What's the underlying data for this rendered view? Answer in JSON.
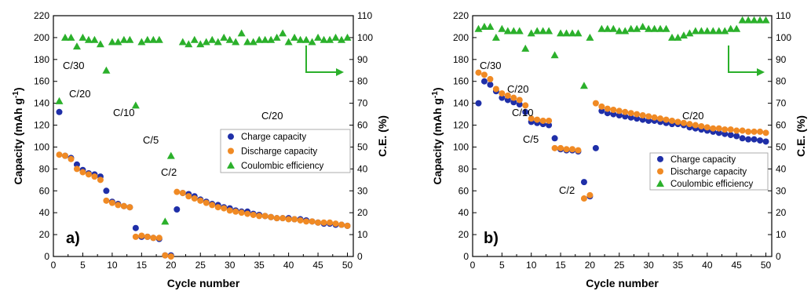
{
  "chart_data": [
    {
      "type": "scatter",
      "panel_label": "a)",
      "xlabel": "Cycle number",
      "ylabel_left": "Capacity (mAh g",
      "ylabel_left_sup": "-1",
      "ylabel_left_end": ")",
      "ylabel_right": "C.E. (%)",
      "xlim": [
        0,
        51
      ],
      "x_ticks": [
        "0",
        "5",
        "10",
        "15",
        "20",
        "25",
        "30",
        "35",
        "40",
        "45",
        "50"
      ],
      "ylim_left": [
        0,
        220
      ],
      "y_ticks_left": [
        "0",
        "20",
        "40",
        "60",
        "80",
        "100",
        "120",
        "140",
        "160",
        "180",
        "200",
        "220"
      ],
      "ylim_right": [
        0,
        110
      ],
      "y_ticks_right": [
        "0",
        "10",
        "20",
        "30",
        "40",
        "50",
        "60",
        "70",
        "80",
        "90",
        "100",
        "110"
      ],
      "grid": false,
      "legend_position": "right-middle",
      "series": [
        {
          "name": "Charge capacity",
          "axis": "left",
          "color": "#1f2fa8",
          "marker": "circle",
          "x": [
            1,
            2,
            3,
            4,
            5,
            6,
            7,
            8,
            9,
            10,
            11,
            12,
            13,
            14,
            15,
            16,
            17,
            18,
            19,
            20,
            21,
            22,
            23,
            24,
            25,
            26,
            27,
            28,
            29,
            30,
            31,
            32,
            33,
            34,
            35,
            36,
            37,
            38,
            39,
            40,
            41,
            42,
            43,
            44,
            45,
            46,
            47,
            48,
            49,
            50
          ],
          "y": [
            132,
            92,
            90,
            84,
            79,
            76,
            75,
            73,
            60,
            50,
            48,
            46,
            45,
            26,
            18,
            18,
            17,
            16,
            1,
            1,
            43,
            58,
            57,
            55,
            52,
            50,
            48,
            47,
            45,
            44,
            42,
            41,
            41,
            39,
            38,
            37,
            36,
            35,
            35,
            35,
            34,
            34,
            33,
            32,
            31,
            30,
            30,
            29,
            29,
            28
          ]
        },
        {
          "name": "Discharge capacity",
          "axis": "left",
          "color": "#f08a24",
          "marker": "circle",
          "x": [
            1,
            2,
            3,
            4,
            5,
            6,
            7,
            8,
            9,
            10,
            11,
            12,
            13,
            14,
            15,
            16,
            17,
            18,
            19,
            20,
            21,
            22,
            23,
            24,
            25,
            26,
            27,
            28,
            29,
            30,
            31,
            32,
            33,
            34,
            35,
            36,
            37,
            38,
            39,
            40,
            41,
            42,
            43,
            44,
            45,
            46,
            47,
            48,
            49,
            50
          ],
          "y": [
            93,
            92,
            89,
            80,
            77,
            75,
            73,
            70,
            51,
            49,
            47,
            46,
            45,
            18,
            19,
            18,
            17,
            17,
            1,
            0,
            59,
            58,
            55,
            53,
            51,
            49,
            47,
            45,
            44,
            42,
            41,
            40,
            39,
            38,
            37,
            37,
            36,
            35,
            35,
            34,
            34,
            33,
            32,
            32,
            31,
            31,
            31,
            30,
            29,
            28
          ]
        },
        {
          "name": "Coulombic efficiency",
          "axis": "right",
          "color": "#2bb02b",
          "marker": "triangle",
          "x": [
            1,
            2,
            3,
            4,
            5,
            6,
            7,
            8,
            9,
            10,
            11,
            12,
            13,
            14,
            15,
            16,
            17,
            18,
            19,
            20,
            21,
            22,
            23,
            24,
            25,
            26,
            27,
            28,
            29,
            30,
            31,
            32,
            33,
            34,
            35,
            36,
            37,
            38,
            39,
            40,
            41,
            42,
            43,
            44,
            45,
            46,
            47,
            48,
            49,
            50
          ],
          "y": [
            71,
            100,
            100,
            96,
            100,
            99,
            99,
            97,
            85,
            98,
            98,
            99,
            99,
            69,
            98,
            99,
            99,
            99,
            16,
            46,
            null,
            98,
            97,
            99,
            97,
            98,
            99,
            98,
            100,
            99,
            98,
            102,
            98,
            98,
            99,
            99,
            99,
            100,
            102,
            98,
            100,
            99,
            99,
            98,
            100,
            99,
            99,
            100,
            99,
            100
          ]
        }
      ],
      "annotations": [
        "C/30",
        "C/20",
        "C/10",
        "C/5",
        "C/2",
        "C/20"
      ]
    },
    {
      "type": "scatter",
      "panel_label": "b)",
      "xlabel": "Cycle number",
      "ylabel_left": "Capacity (mAh g",
      "ylabel_left_sup": "-1",
      "ylabel_left_end": ")",
      "ylabel_right": "C.E. (%)",
      "xlim": [
        0,
        51
      ],
      "x_ticks": [
        "0",
        "5",
        "10",
        "15",
        "20",
        "25",
        "30",
        "35",
        "40",
        "45",
        "50"
      ],
      "ylim_left": [
        0,
        220
      ],
      "y_ticks_left": [
        "0",
        "20",
        "40",
        "60",
        "80",
        "100",
        "120",
        "140",
        "160",
        "180",
        "200",
        "220"
      ],
      "ylim_right": [
        0,
        110
      ],
      "y_ticks_right": [
        "0",
        "10",
        "20",
        "30",
        "40",
        "50",
        "60",
        "70",
        "80",
        "90",
        "100",
        "110"
      ],
      "grid": false,
      "legend_position": "bottom-right",
      "series": [
        {
          "name": "Charge capacity",
          "axis": "left",
          "color": "#1f2fa8",
          "marker": "circle",
          "x": [
            1,
            2,
            3,
            4,
            5,
            6,
            7,
            8,
            9,
            10,
            11,
            12,
            13,
            14,
            15,
            16,
            17,
            18,
            19,
            20,
            21,
            22,
            23,
            24,
            25,
            26,
            27,
            28,
            29,
            30,
            31,
            32,
            33,
            34,
            35,
            36,
            37,
            38,
            39,
            40,
            41,
            42,
            43,
            44,
            45,
            46,
            47,
            48,
            49,
            50
          ],
          "y": [
            140,
            160,
            157,
            151,
            145,
            143,
            141,
            139,
            132,
            123,
            122,
            121,
            120,
            108,
            98,
            97,
            97,
            96,
            68,
            55,
            99,
            133,
            131,
            130,
            129,
            128,
            127,
            126,
            125,
            124,
            124,
            123,
            122,
            121,
            121,
            120,
            118,
            117,
            116,
            115,
            114,
            113,
            112,
            111,
            110,
            108,
            107,
            107,
            106,
            105
          ]
        },
        {
          "name": "Discharge capacity",
          "axis": "left",
          "color": "#f08a24",
          "marker": "circle",
          "x": [
            1,
            2,
            3,
            4,
            5,
            6,
            7,
            8,
            9,
            10,
            11,
            12,
            13,
            14,
            15,
            16,
            17,
            18,
            19,
            20,
            21,
            22,
            23,
            24,
            25,
            26,
            27,
            28,
            29,
            30,
            31,
            32,
            33,
            34,
            35,
            36,
            37,
            38,
            39,
            40,
            41,
            42,
            43,
            44,
            45,
            46,
            47,
            48,
            49,
            50
          ],
          "y": [
            168,
            166,
            162,
            153,
            149,
            147,
            145,
            143,
            138,
            126,
            125,
            124,
            124,
            99,
            99,
            98,
            98,
            97,
            53,
            56,
            140,
            137,
            135,
            134,
            133,
            132,
            131,
            130,
            129,
            128,
            127,
            126,
            125,
            124,
            123,
            122,
            121,
            120,
            119,
            118,
            117,
            117,
            116,
            116,
            115,
            115,
            114,
            114,
            114,
            113
          ]
        },
        {
          "name": "Coulombic efficiency",
          "axis": "right",
          "color": "#2bb02b",
          "marker": "triangle",
          "x": [
            1,
            2,
            3,
            4,
            5,
            6,
            7,
            8,
            9,
            10,
            11,
            12,
            13,
            14,
            15,
            16,
            17,
            18,
            19,
            20,
            21,
            22,
            23,
            24,
            25,
            26,
            27,
            28,
            29,
            30,
            31,
            32,
            33,
            34,
            35,
            36,
            37,
            38,
            39,
            40,
            41,
            42,
            43,
            44,
            45,
            46,
            47,
            48,
            49,
            50
          ],
          "y": [
            104,
            105,
            105,
            100,
            104,
            103,
            103,
            103,
            95,
            102,
            103,
            103,
            103,
            92,
            102,
            102,
            102,
            102,
            78,
            100,
            null,
            104,
            104,
            104,
            103,
            103,
            104,
            104,
            105,
            104,
            104,
            104,
            104,
            100,
            100,
            101,
            102,
            103,
            103,
            103,
            103,
            103,
            103,
            104,
            104,
            108,
            108,
            108,
            108,
            108
          ]
        }
      ],
      "annotations": [
        "C/30",
        "C/20",
        "C/10",
        "C/5",
        "C/2",
        "C/20"
      ]
    }
  ]
}
